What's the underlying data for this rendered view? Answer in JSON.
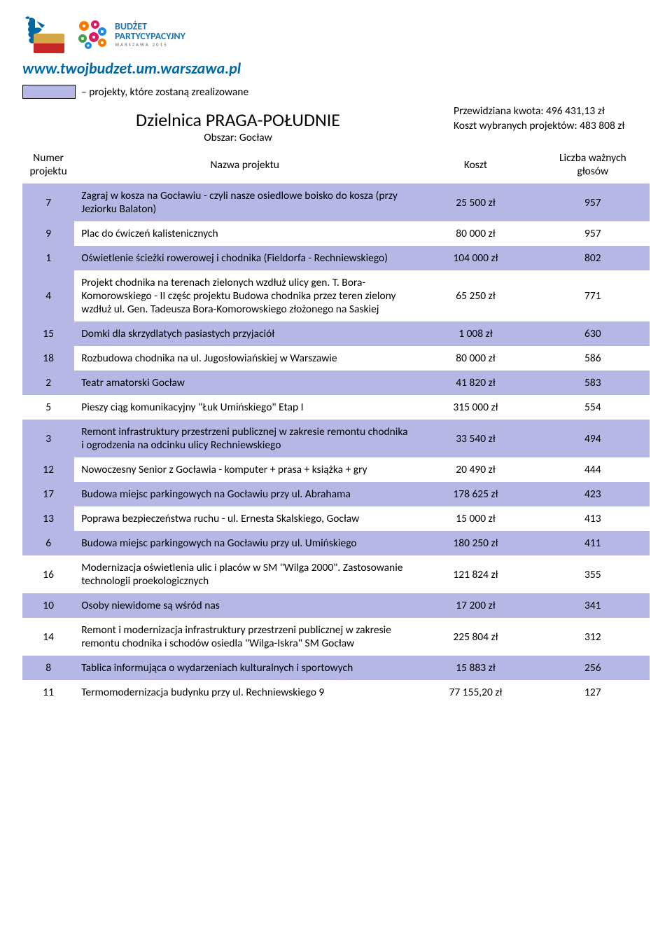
{
  "colors": {
    "highlight": "#b7b7e6",
    "row_even": "#b7b7e6",
    "row_odd": "#ffffff",
    "url": "#0067a5",
    "budget_blue": "#1976b8",
    "text": "#000000",
    "flag_yellow": "#d4a847",
    "flag_red": "#c62828",
    "flower_orange": "#f57c00",
    "flower_pink": "#d81b60",
    "flower_blue": "#1e88e5",
    "flower_green": "#43a047"
  },
  "header": {
    "budget_line1": "BUDŻET",
    "budget_line2": "PARTYCYPACYJNY",
    "budget_sub": "WARSZAWA 2015",
    "site_url": "www.twojbudzet.um.warszawa.pl"
  },
  "legend": {
    "text": "– projekty, które zostaną zrealizowane"
  },
  "title": {
    "main": "Dzielnica PRAGA-POŁUDNIE",
    "sub": "Obszar: Gocław"
  },
  "quota": {
    "line1": "Przewidziana kwota: 496 431,13 zł",
    "line2": "Koszt wybranych projektów: 483 808 zł"
  },
  "table": {
    "headers": {
      "num": "Numer projektu",
      "name": "Nazwa projektu",
      "cost": "Koszt",
      "votes": "Liczba ważnych głosów"
    },
    "rows": [
      {
        "num": "7",
        "name": "Zagraj w kosza na Gocławiu - czyli nasze osiedlowe boisko do kosza (przy Jeziorku Balaton)",
        "cost": "25 500 zł",
        "votes": "957",
        "highlight": true
      },
      {
        "num": "9",
        "name": "Plac do ćwiczeń kalistenicznych",
        "cost": "80 000 zł",
        "votes": "957",
        "highlight": true
      },
      {
        "num": "1",
        "name": "Oświetlenie ścieżki rowerowej i chodnika (Fieldorfa - Rechniewskiego)",
        "cost": "104 000 zł",
        "votes": "802",
        "highlight": true
      },
      {
        "num": "4",
        "name": "Projekt chodnika na terenach zielonych wzdłuż ulicy gen. T. Bora-Komorowskiego - II częśc projektu Budowa chodnika przez teren zielony wzdłuż ul. Gen. Tadeusza Bora-Komorowskiego złożonego na Saskiej",
        "cost": "65 250 zł",
        "votes": "771",
        "highlight": true
      },
      {
        "num": "15",
        "name": "Domki dla skrzydlatych pasiastych przyjaciół",
        "cost": "1 008 zł",
        "votes": "630",
        "highlight": true
      },
      {
        "num": "18",
        "name": "Rozbudowa chodnika na ul. Jugosłowiańskiej w Warszawie",
        "cost": "80 000 zł",
        "votes": "586",
        "highlight": true
      },
      {
        "num": "2",
        "name": "Teatr amatorski Gocław",
        "cost": "41 820 zł",
        "votes": "583",
        "highlight": true
      },
      {
        "num": "5",
        "name": "Pieszy ciąg komunikacyjny \"Łuk Umińskiego\" Etap I",
        "cost": "315 000 zł",
        "votes": "554",
        "highlight": false
      },
      {
        "num": "3",
        "name": "Remont infrastruktury przestrzeni publicznej w zakresie remontu chodnika i ogrodzenia na odcinku ulicy Rechniewskiego",
        "cost": "33 540 zł",
        "votes": "494",
        "highlight": true
      },
      {
        "num": "12",
        "name": "Nowoczesny Senior z Gocławia - komputer + prasa + książka + gry",
        "cost": "20 490 zł",
        "votes": "444",
        "highlight": true
      },
      {
        "num": "17",
        "name": "Budowa miejsc parkingowych na Gocławiu przy ul. Abrahama",
        "cost": "178 625 zł",
        "votes": "423",
        "highlight": false
      },
      {
        "num": "13",
        "name": "Poprawa bezpieczeństwa ruchu - ul. Ernesta Skalskiego, Gocław",
        "cost": "15 000 zł",
        "votes": "413",
        "highlight": true
      },
      {
        "num": "6",
        "name": "Budowa miejsc parkingowych na Gocławiu przy ul. Umińskiego",
        "cost": "180 250 zł",
        "votes": "411",
        "highlight": false
      },
      {
        "num": "16",
        "name": "Modernizacja oświetlenia ulic i placów w SM \"Wilga 2000\". Zastosowanie technologii proekologicznych",
        "cost": "121 824 zł",
        "votes": "355",
        "highlight": false
      },
      {
        "num": "10",
        "name": "Osoby niewidome są wśród nas",
        "cost": "17 200 zł",
        "votes": "341",
        "highlight": true
      },
      {
        "num": "14",
        "name": "Remont i modernizacja infrastruktury przestrzeni publicznej w zakresie remontu chodnika i schodów osiedla \"Wilga-Iskra\" SM Gocław",
        "cost": "225 804 zł",
        "votes": "312",
        "highlight": false
      },
      {
        "num": "8",
        "name": "Tablica informująca o wydarzeniach kulturalnych i sportowych",
        "cost": "15 883 zł",
        "votes": "256",
        "highlight": false
      },
      {
        "num": "11",
        "name": "Termomodernizacja budynku przy ul. Rechniewskiego 9",
        "cost": "77 155,20 zł",
        "votes": "127",
        "highlight": false
      }
    ]
  }
}
